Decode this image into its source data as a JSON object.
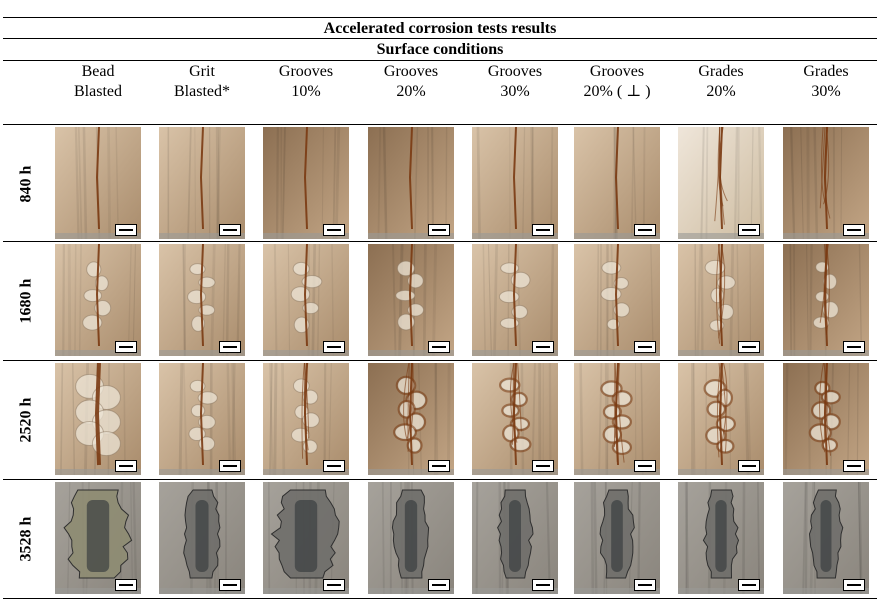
{
  "title": "Accelerated corrosion tests results",
  "subtitle": "Surface conditions",
  "columns": [
    {
      "line1": "Bead",
      "line2": "Blasted"
    },
    {
      "line1": "Grit",
      "line2": "Blasted*"
    },
    {
      "line1": "Grooves",
      "line2": "10%"
    },
    {
      "line1": "Grooves",
      "line2": "20%"
    },
    {
      "line1": "Grooves",
      "line2": "30%"
    },
    {
      "line1": "Grooves",
      "line2": "20% ( ⊥ )"
    },
    {
      "line1": "Grades",
      "line2": "20%"
    },
    {
      "line1": "Grades",
      "line2": "30%"
    }
  ],
  "rows": [
    {
      "label": "840 h"
    },
    {
      "label": "1680 h"
    },
    {
      "label": "2520 h"
    },
    {
      "label": "3528 h"
    }
  ],
  "colors": {
    "panel_light": "#d9c3a8",
    "panel_dark": "#a98c6c",
    "rust": "#7a3a12",
    "blister": "#ece4d6",
    "corroded_grey": "#6f6e6a",
    "dark_stain": "#3b3e40"
  }
}
